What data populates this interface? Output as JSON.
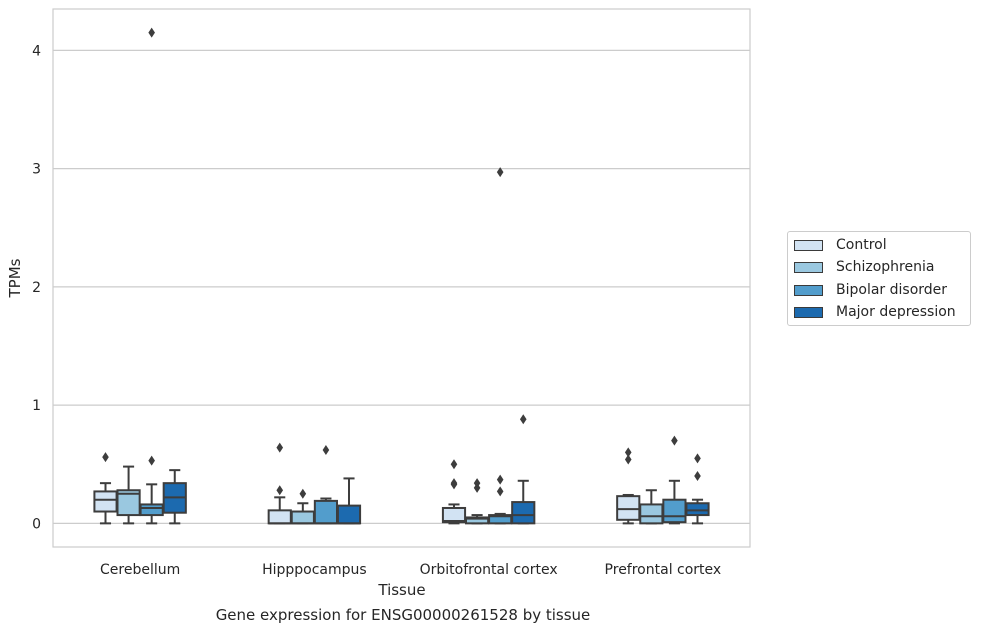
{
  "chart_data": {
    "type": "box",
    "xlabel": "Tissue",
    "ylabel": "TPMs",
    "caption": "Gene expression for ENSG00000261528 by tissue",
    "ylim": [
      -0.2,
      4.35
    ],
    "yticks": [
      0,
      1,
      2,
      3,
      4
    ],
    "grid": "horizontal",
    "legend_position": "right",
    "categories": [
      "Cerebellum",
      "Hipppocampus",
      "Orbitofrontal cortex",
      "Prefrontal cortex"
    ],
    "series": [
      {
        "name": "Control",
        "color": "#d2e3f3",
        "boxes": [
          {
            "whislo": 0.0,
            "q1": 0.1,
            "med": 0.2,
            "q3": 0.27,
            "whishi": 0.34,
            "fliers": [
              0.56
            ]
          },
          {
            "whislo": 0.0,
            "q1": 0.0,
            "med": 0.0,
            "q3": 0.11,
            "whishi": 0.22,
            "fliers": [
              0.28,
              0.64
            ]
          },
          {
            "whislo": 0.0,
            "q1": 0.01,
            "med": 0.02,
            "q3": 0.13,
            "whishi": 0.16,
            "fliers": [
              0.33,
              0.34,
              0.5
            ]
          },
          {
            "whislo": 0.0,
            "q1": 0.03,
            "med": 0.12,
            "q3": 0.23,
            "whishi": 0.24,
            "fliers": [
              0.54,
              0.6
            ]
          }
        ]
      },
      {
        "name": "Schizophrenia",
        "color": "#9ac8e0",
        "boxes": [
          {
            "whislo": 0.0,
            "q1": 0.07,
            "med": 0.25,
            "q3": 0.28,
            "whishi": 0.48,
            "fliers": []
          },
          {
            "whislo": 0.0,
            "q1": 0.0,
            "med": 0.0,
            "q3": 0.1,
            "whishi": 0.17,
            "fliers": [
              0.25
            ]
          },
          {
            "whislo": 0.0,
            "q1": 0.0,
            "med": 0.04,
            "q3": 0.05,
            "whishi": 0.07,
            "fliers": [
              0.3,
              0.34
            ]
          },
          {
            "whislo": 0.0,
            "q1": 0.0,
            "med": 0.06,
            "q3": 0.16,
            "whishi": 0.28,
            "fliers": []
          }
        ]
      },
      {
        "name": "Bipolar disorder",
        "color": "#529dcc",
        "boxes": [
          {
            "whislo": 0.0,
            "q1": 0.07,
            "med": 0.13,
            "q3": 0.16,
            "whishi": 0.33,
            "fliers": [
              0.53,
              4.15
            ]
          },
          {
            "whislo": 0.0,
            "q1": 0.0,
            "med": 0.0,
            "q3": 0.19,
            "whishi": 0.21,
            "fliers": [
              0.62
            ]
          },
          {
            "whislo": 0.0,
            "q1": 0.0,
            "med": 0.06,
            "q3": 0.07,
            "whishi": 0.08,
            "fliers": [
              0.27,
              0.37,
              2.97
            ]
          },
          {
            "whislo": 0.0,
            "q1": 0.01,
            "med": 0.06,
            "q3": 0.2,
            "whishi": 0.36,
            "fliers": [
              0.7
            ]
          }
        ]
      },
      {
        "name": "Major depression",
        "color": "#1c6aaf",
        "boxes": [
          {
            "whislo": 0.0,
            "q1": 0.09,
            "med": 0.22,
            "q3": 0.34,
            "whishi": 0.45,
            "fliers": []
          },
          {
            "whislo": 0.0,
            "q1": 0.0,
            "med": 0.0,
            "q3": 0.15,
            "whishi": 0.38,
            "fliers": []
          },
          {
            "whislo": 0.0,
            "q1": 0.0,
            "med": 0.07,
            "q3": 0.18,
            "whishi": 0.36,
            "fliers": [
              0.88
            ]
          },
          {
            "whislo": 0.0,
            "q1": 0.07,
            "med": 0.11,
            "q3": 0.17,
            "whishi": 0.2,
            "fliers": [
              0.4,
              0.55
            ]
          }
        ]
      }
    ]
  }
}
